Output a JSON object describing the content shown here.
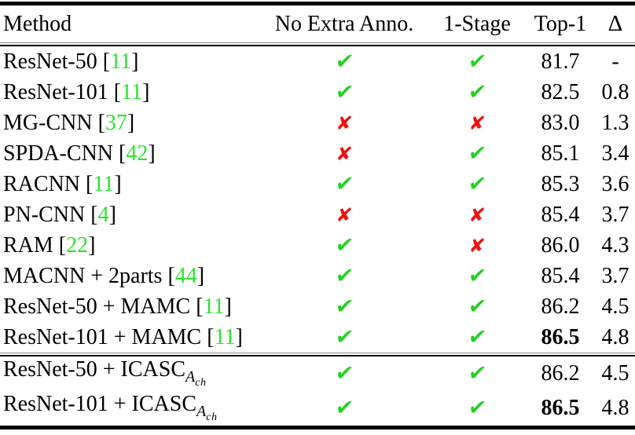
{
  "table": {
    "columns": [
      {
        "key": "method",
        "label": "Method"
      },
      {
        "key": "no_extra_anno",
        "label": "No Extra Anno."
      },
      {
        "key": "one_stage",
        "label": "1-Stage"
      },
      {
        "key": "top1",
        "label": "Top-1"
      },
      {
        "key": "delta",
        "label": "Δ"
      }
    ],
    "symbols": {
      "check": "✔",
      "cross": "✘",
      "bracket_open": "[",
      "bracket_close": "]"
    },
    "colors": {
      "check_green": "#22d122",
      "cross_red": "#ee1111",
      "cite_green": "#2ee22e",
      "text": "#000000",
      "rule": "#000000"
    },
    "section_break_after_row": 10,
    "rows": [
      {
        "method": "ResNet-50",
        "cite": "11",
        "sub": "",
        "subsub": "",
        "no_extra_anno": true,
        "one_stage": true,
        "top1": "81.7",
        "top1_bold": false,
        "delta": "-"
      },
      {
        "method": "ResNet-101",
        "cite": "11",
        "sub": "",
        "subsub": "",
        "no_extra_anno": true,
        "one_stage": true,
        "top1": "82.5",
        "top1_bold": false,
        "delta": "0.8"
      },
      {
        "method": "MG-CNN",
        "cite": "37",
        "sub": "",
        "subsub": "",
        "no_extra_anno": false,
        "one_stage": false,
        "top1": "83.0",
        "top1_bold": false,
        "delta": "1.3"
      },
      {
        "method": "SPDA-CNN",
        "cite": "42",
        "sub": "",
        "subsub": "",
        "no_extra_anno": false,
        "one_stage": true,
        "top1": "85.1",
        "top1_bold": false,
        "delta": "3.4"
      },
      {
        "method": "RACNN",
        "cite": "11",
        "sub": "",
        "subsub": "",
        "no_extra_anno": true,
        "one_stage": true,
        "top1": "85.3",
        "top1_bold": false,
        "delta": "3.6"
      },
      {
        "method": "PN-CNN",
        "cite": "4",
        "sub": "",
        "subsub": "",
        "no_extra_anno": false,
        "one_stage": false,
        "top1": "85.4",
        "top1_bold": false,
        "delta": "3.7"
      },
      {
        "method": "RAM",
        "cite": "22",
        "sub": "",
        "subsub": "",
        "no_extra_anno": true,
        "one_stage": false,
        "top1": "86.0",
        "top1_bold": false,
        "delta": "4.3"
      },
      {
        "method": "MACNN + 2parts",
        "cite": "44",
        "sub": "",
        "subsub": "",
        "no_extra_anno": true,
        "one_stage": true,
        "top1": "85.4",
        "top1_bold": false,
        "delta": "3.7"
      },
      {
        "method": "ResNet-50 + MAMC",
        "cite": "11",
        "sub": "",
        "subsub": "",
        "no_extra_anno": true,
        "one_stage": true,
        "top1": "86.2",
        "top1_bold": false,
        "delta": "4.5"
      },
      {
        "method": "ResNet-101 + MAMC",
        "cite": "11",
        "sub": "",
        "subsub": "",
        "no_extra_anno": true,
        "one_stage": true,
        "top1": "86.5",
        "top1_bold": true,
        "delta": "4.8"
      },
      {
        "method": "ResNet-50 + ICASC",
        "cite": "",
        "sub": "A",
        "subsub": "ch",
        "no_extra_anno": true,
        "one_stage": true,
        "top1": "86.2",
        "top1_bold": false,
        "delta": "4.5"
      },
      {
        "method": "ResNet-101 + ICASC",
        "cite": "",
        "sub": "A",
        "subsub": "ch",
        "no_extra_anno": true,
        "one_stage": true,
        "top1": "86.5",
        "top1_bold": true,
        "delta": "4.8"
      }
    ]
  }
}
